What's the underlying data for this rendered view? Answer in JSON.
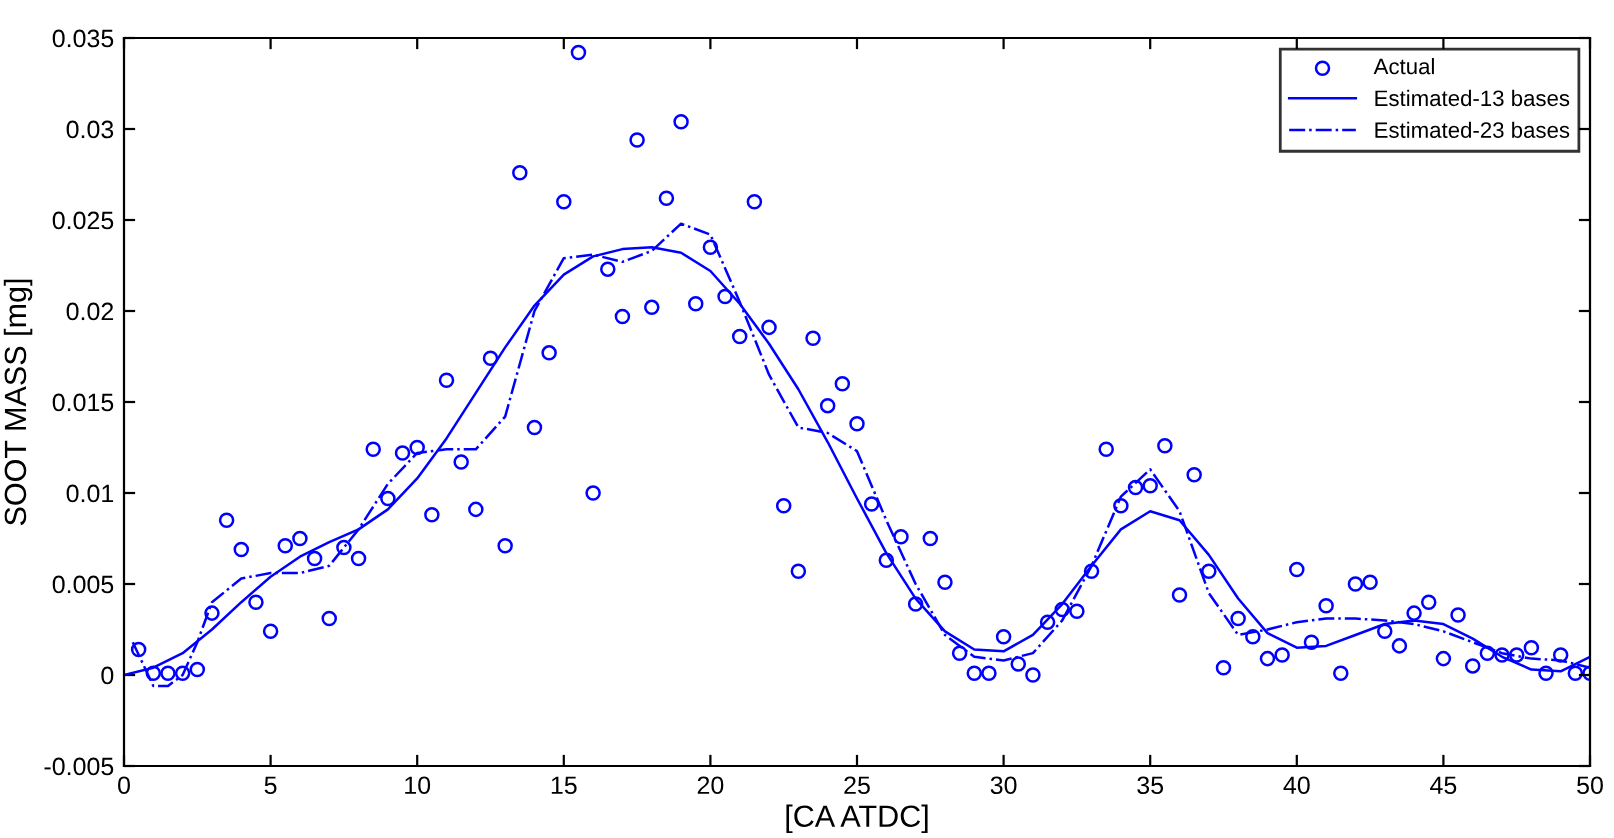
{
  "chart_data": {
    "type": "scatter",
    "xlabel": "[CA ATDC]",
    "ylabel": "SOOT MASS [mg]",
    "xlim": [
      0,
      50
    ],
    "ylim": [
      -0.005,
      0.035
    ],
    "xticks": [
      0,
      5,
      10,
      15,
      20,
      25,
      30,
      35,
      40,
      45,
      50
    ],
    "yticks": [
      {
        "value": -0.005,
        "label": "-0.005"
      },
      0,
      {
        "value": 0.005,
        "label": "0.005"
      },
      {
        "value": 0.01,
        "label": "0.01"
      },
      {
        "value": 0.015,
        "label": "0.015"
      },
      {
        "value": 0.02,
        "label": "0.02"
      },
      {
        "value": 0.025,
        "label": "0.025"
      },
      {
        "value": 0.03,
        "label": "0.03"
      },
      {
        "value": 0.035,
        "label": "0.035"
      }
    ],
    "grid": false,
    "legend": "top right",
    "series": [
      {
        "name": "Actual",
        "marker": "circle",
        "color": "#0000ff",
        "x": [
          0.5,
          1,
          1.5,
          2,
          2.5,
          3,
          3.5,
          4,
          4.5,
          5,
          5.5,
          6,
          6.5,
          7,
          7.5,
          8,
          8.5,
          9,
          9.5,
          10,
          10.5,
          11,
          11.5,
          12,
          12.5,
          13,
          13.5,
          14,
          14.5,
          15,
          15.5,
          16,
          16.5,
          17,
          17.5,
          18,
          18.5,
          19,
          19.5,
          20,
          20.5,
          21,
          21.5,
          22,
          22.5,
          23,
          23.5,
          24,
          24.5,
          25,
          25.5,
          26,
          26.5,
          27,
          27.5,
          28,
          28.5,
          29,
          29.5,
          30,
          30.5,
          31,
          31.5,
          32,
          32.5,
          33,
          33.5,
          34,
          34.5,
          35,
          35.5,
          36,
          36.5,
          37,
          37.5,
          38,
          38.5,
          39,
          39.5,
          40,
          40.5,
          41,
          41.5,
          42,
          42.5,
          43,
          43.5,
          44,
          44.5,
          45,
          45.5,
          46,
          46.5,
          47,
          47.5,
          48,
          48.5,
          49,
          49.5,
          50
        ],
        "values": [
          0.0014,
          0.0001,
          0.0001,
          0.0001,
          0.0003,
          0.0034,
          0.0085,
          0.0069,
          0.004,
          0.0024,
          0.0071,
          0.0075,
          0.0064,
          0.0031,
          0.007,
          0.0064,
          0.0124,
          0.0097,
          0.0122,
          0.0125,
          0.0088,
          0.0162,
          0.0117,
          0.0091,
          0.0174,
          0.0071,
          0.0276,
          0.0136,
          0.0177,
          0.026,
          0.0342,
          0.01,
          0.0223,
          0.0197,
          0.0294,
          0.0202,
          0.0262,
          0.0304,
          0.0204,
          0.0235,
          0.0208,
          0.0186,
          0.026,
          0.0191,
          0.0093,
          0.0057,
          0.0185,
          0.0148,
          0.016,
          0.0138,
          0.0094,
          0.0063,
          0.0076,
          0.0039,
          0.0075,
          0.0051,
          0.0012,
          0.0001,
          0.0001,
          0.0021,
          0.0006,
          0.0,
          0.0029,
          0.0036,
          0.0035,
          0.0057,
          0.0124,
          0.0093,
          0.0103,
          0.0104,
          0.0126,
          0.0044,
          0.011,
          0.0057,
          0.0004,
          0.0031,
          0.0021,
          0.0009,
          0.0011,
          0.0058,
          0.0018,
          0.0038,
          0.0001,
          0.005,
          0.0051,
          0.0024,
          0.0016,
          0.0034,
          0.004,
          0.0009,
          0.0033,
          0.0005,
          0.0012,
          0.0011,
          0.0011,
          0.0015,
          0.0001,
          0.0011,
          0.0001,
          0.0001
        ]
      },
      {
        "name": "Estimated-13 bases",
        "type": "line",
        "line_style": "solid",
        "marker": "none",
        "color": "#0000ff",
        "x": [
          0,
          1,
          2,
          3,
          4,
          5,
          6,
          7,
          8,
          9,
          10,
          11,
          12,
          13,
          14,
          15,
          16,
          17,
          18,
          19,
          20,
          21,
          22,
          23,
          24,
          25,
          26,
          27,
          28,
          29,
          30,
          31,
          32,
          33,
          34,
          35,
          36,
          37,
          38,
          39,
          40,
          41,
          42,
          43,
          44,
          45,
          46,
          47,
          48,
          49,
          50
        ],
        "values": [
          0.0,
          0.0004,
          0.0012,
          0.0025,
          0.004,
          0.0054,
          0.0065,
          0.0073,
          0.008,
          0.0091,
          0.0108,
          0.013,
          0.0155,
          0.018,
          0.0203,
          0.022,
          0.023,
          0.0234,
          0.0235,
          0.0232,
          0.0222,
          0.0204,
          0.0182,
          0.0157,
          0.0128,
          0.0097,
          0.0067,
          0.0042,
          0.0024,
          0.0014,
          0.0013,
          0.0022,
          0.0039,
          0.006,
          0.008,
          0.009,
          0.0085,
          0.0066,
          0.0042,
          0.0023,
          0.0015,
          0.0016,
          0.0022,
          0.0028,
          0.003,
          0.0028,
          0.002,
          0.001,
          0.0003,
          0.0002,
          0.001
        ]
      },
      {
        "name": "Estimated-23 bases",
        "type": "line",
        "line_style": "dashdot",
        "marker": "none",
        "color": "#0000ff",
        "x": [
          0.3,
          1,
          1.5,
          2,
          2.5,
          3,
          4,
          5,
          6,
          7,
          8,
          9,
          10,
          11,
          12,
          13,
          14,
          15,
          16,
          17,
          18,
          19,
          20,
          21,
          22,
          23,
          24,
          25,
          26,
          27,
          28,
          29,
          30,
          31,
          32,
          33,
          34,
          35,
          36,
          37,
          38,
          39,
          40,
          41,
          42,
          43,
          44,
          45,
          46,
          47,
          48,
          49,
          50
        ],
        "values": [
          0.0018,
          -0.0006,
          -0.0006,
          0.0,
          0.0018,
          0.004,
          0.0053,
          0.0056,
          0.0056,
          0.006,
          0.008,
          0.0105,
          0.0122,
          0.0124,
          0.0124,
          0.0142,
          0.02,
          0.0229,
          0.0231,
          0.0227,
          0.0233,
          0.0248,
          0.0242,
          0.0205,
          0.0165,
          0.0136,
          0.0133,
          0.0123,
          0.0085,
          0.005,
          0.0022,
          0.001,
          0.0008,
          0.0012,
          0.003,
          0.006,
          0.0098,
          0.0113,
          0.009,
          0.0045,
          0.0022,
          0.0025,
          0.0029,
          0.0031,
          0.0031,
          0.003,
          0.0028,
          0.0024,
          0.0018,
          0.0012,
          0.0009,
          0.0008,
          0.0004
        ]
      }
    ]
  }
}
